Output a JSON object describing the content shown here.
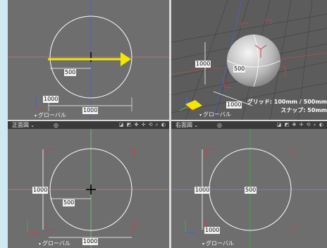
{
  "viewports": {
    "top_left": {
      "global_label": "グローバル",
      "dim_width": "1000",
      "dim_height": "1000",
      "dim_radius": "500"
    },
    "top_right": {
      "global_label": "グローバル",
      "dim_width": "1000",
      "dim_height": "1000",
      "dim_radius": "500",
      "grid_text": "グリッド: 100mm / 500mm",
      "snap_text": "スナップ: 50mm"
    },
    "bottom_left": {
      "title": "正面図",
      "global_label": "グローバル",
      "dim_width": "1000",
      "dim_height": "1000",
      "dim_radius": "500"
    },
    "bottom_right": {
      "title": "右面図",
      "global_label": "グローバル",
      "dim_width": "1000",
      "dim_height": "1000",
      "dim_radius": "500"
    }
  },
  "colors": {
    "arrow": "#f3e600",
    "axis_red": "#c8404a",
    "axis_green": "#3fae45",
    "axis_blue": "#4a5fd0"
  }
}
